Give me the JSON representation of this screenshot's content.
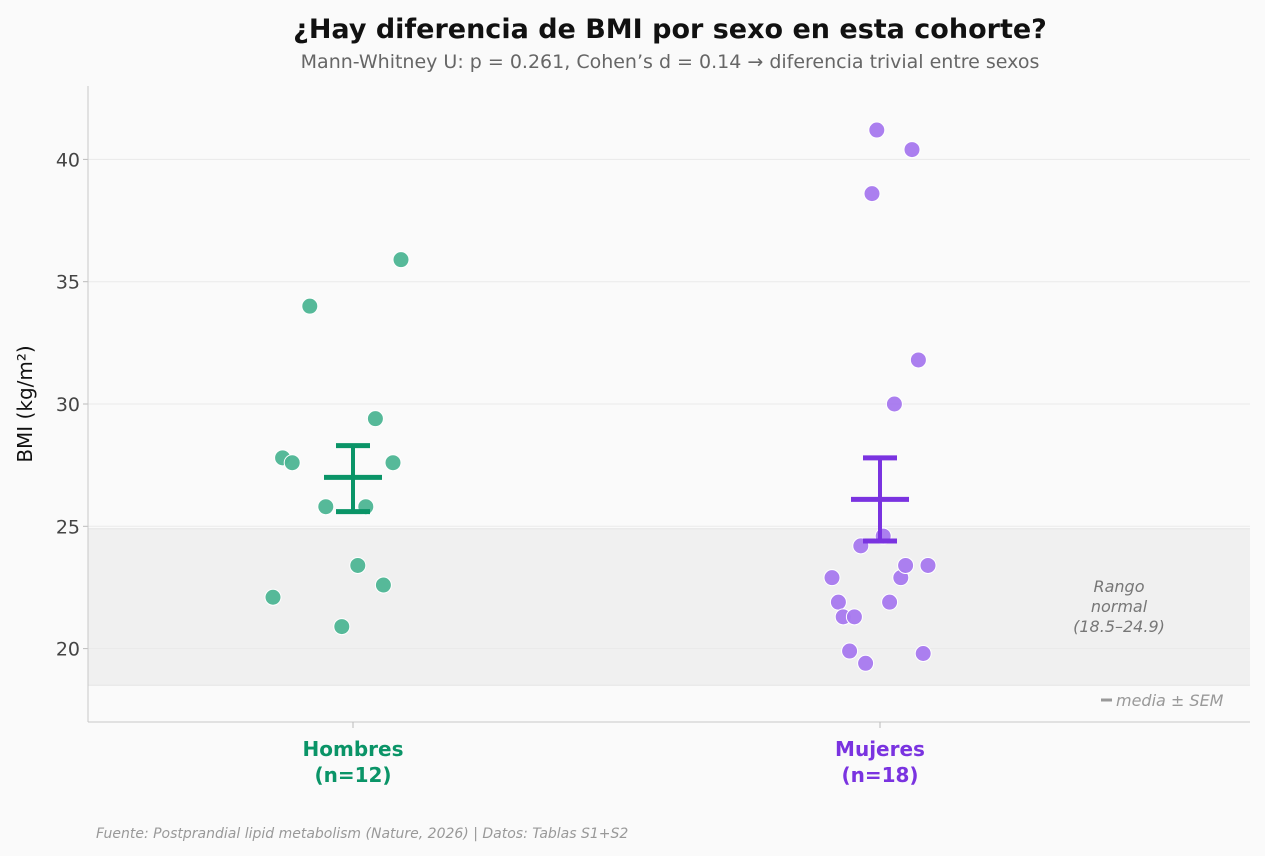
{
  "chart_data": {
    "type": "scatter",
    "title": "¿Hay diferencia de BMI por sexo en esta cohorte?",
    "subtitle": "Mann-Whitney U: p = 0.261, Cohen’s d = 0.14  →  diferencia trivial entre sexos",
    "ylabel": "BMI (kg/m²)",
    "ylim": [
      17,
      43
    ],
    "yticks": [
      20,
      25,
      30,
      35,
      40
    ],
    "grid": true,
    "reference_band": {
      "ymin": 18.5,
      "ymax": 24.9,
      "label_lines": [
        "Rango",
        "normal",
        "(18.5–24.9)"
      ],
      "color": "#f0f0f0"
    },
    "legend": {
      "label": "media ± SEM",
      "placement": "bottom-right"
    },
    "source": "Fuente: Postprandial lipid metabolism (Nature, 2026) | Datos: Tablas S1+S2",
    "groups": [
      {
        "name": "Hombres",
        "n_label": "(n=12)",
        "color": "#0a9467",
        "point_color": "#4db593",
        "mean": 27.0,
        "sem_low": 25.6,
        "sem_high": 28.3,
        "points": [
          {
            "jitter": -0.25,
            "y": 22.1
          },
          {
            "jitter": -0.22,
            "y": 27.8
          },
          {
            "jitter": -0.19,
            "y": 27.6
          },
          {
            "jitter": -0.135,
            "y": 34.0
          },
          {
            "jitter": -0.085,
            "y": 25.8
          },
          {
            "jitter": -0.035,
            "y": 20.9
          },
          {
            "jitter": 0.015,
            "y": 23.4
          },
          {
            "jitter": 0.04,
            "y": 25.8
          },
          {
            "jitter": 0.07,
            "y": 29.4
          },
          {
            "jitter": 0.095,
            "y": 22.6
          },
          {
            "jitter": 0.125,
            "y": 27.6
          },
          {
            "jitter": 0.15,
            "y": 35.9
          }
        ]
      },
      {
        "name": "Mujeres",
        "n_label": "(n=18)",
        "color": "#7a33e0",
        "point_color": "#a678ee",
        "mean": 26.1,
        "sem_low": 24.4,
        "sem_high": 27.8,
        "points": [
          {
            "jitter": -0.15,
            "y": 22.9
          },
          {
            "jitter": -0.13,
            "y": 21.9
          },
          {
            "jitter": -0.115,
            "y": 21.3
          },
          {
            "jitter": -0.095,
            "y": 19.9
          },
          {
            "jitter": -0.08,
            "y": 21.3
          },
          {
            "jitter": -0.06,
            "y": 24.2
          },
          {
            "jitter": -0.045,
            "y": 19.4
          },
          {
            "jitter": -0.025,
            "y": 38.6
          },
          {
            "jitter": -0.01,
            "y": 41.2
          },
          {
            "jitter": 0.01,
            "y": 24.6
          },
          {
            "jitter": 0.03,
            "y": 21.9
          },
          {
            "jitter": 0.045,
            "y": 30.0
          },
          {
            "jitter": 0.065,
            "y": 22.9
          },
          {
            "jitter": 0.08,
            "y": 23.4
          },
          {
            "jitter": 0.1,
            "y": 40.4
          },
          {
            "jitter": 0.12,
            "y": 31.8
          },
          {
            "jitter": 0.135,
            "y": 19.8
          },
          {
            "jitter": 0.15,
            "y": 23.4
          }
        ]
      }
    ]
  }
}
